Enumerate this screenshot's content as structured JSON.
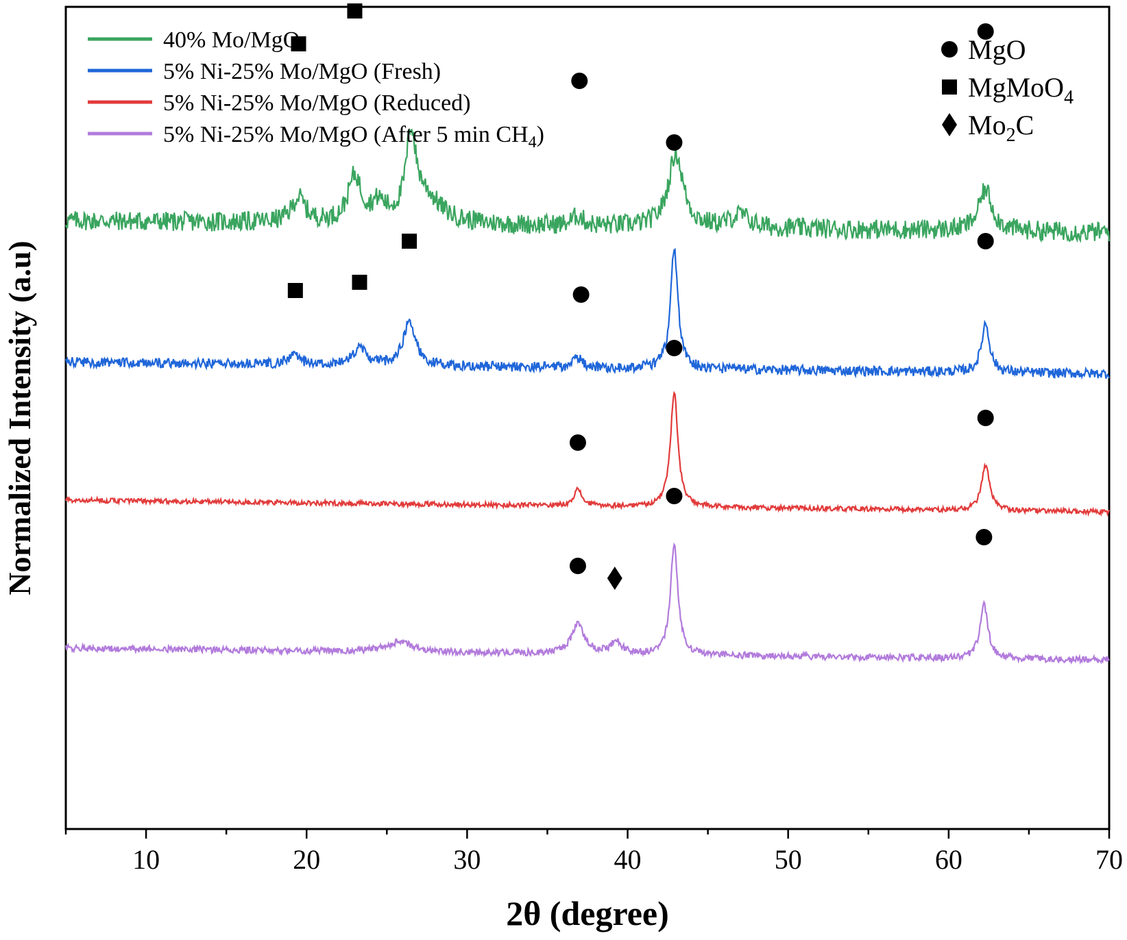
{
  "chart_data": {
    "type": "line",
    "xlabel": "2θ (degree)",
    "ylabel": "Normalized Intensity (a.u)",
    "xlim": [
      5,
      70
    ],
    "x_ticks": [
      10,
      20,
      30,
      40,
      50,
      60,
      70
    ],
    "y_ticks_shown": false,
    "grid": false,
    "legend_placement": "top-left",
    "series": [
      {
        "name": "40% Mo/MgO",
        "color": "#3aa55f",
        "baseline": 0.74,
        "noise": 0.012,
        "peaks": [
          [
            19.5,
            0.03,
            0.5
          ],
          [
            23.0,
            0.055,
            0.5
          ],
          [
            24.5,
            0.02,
            0.5
          ],
          [
            26.5,
            0.095,
            0.35
          ],
          [
            27.3,
            0.035,
            1.2
          ],
          [
            36.9,
            0.012,
            0.4
          ],
          [
            43.0,
            0.09,
            0.55
          ],
          [
            47.0,
            0.015,
            0.7
          ],
          [
            62.3,
            0.05,
            0.5
          ]
        ]
      },
      {
        "name": "5% Ni-25% Mo/MgO (Fresh)",
        "color": "#1f66d9",
        "baseline": 0.568,
        "noise": 0.006,
        "peaks": [
          [
            19.2,
            0.012,
            0.4
          ],
          [
            23.3,
            0.02,
            0.5
          ],
          [
            26.4,
            0.055,
            0.45
          ],
          [
            36.9,
            0.012,
            0.35
          ],
          [
            42.9,
            0.145,
            0.28
          ],
          [
            62.3,
            0.06,
            0.3
          ]
        ]
      },
      {
        "name": "5% Ni-25% Mo/MgO (Reduced)",
        "color": "#e23b3b",
        "baseline": 0.4,
        "noise": 0.003,
        "peaks": [
          [
            36.9,
            0.02,
            0.3
          ],
          [
            42.9,
            0.14,
            0.28
          ],
          [
            62.3,
            0.055,
            0.3
          ]
        ]
      },
      {
        "name": "5% Ni-25% Mo/MgO (After 5 min CH",
        "name_subscript": "4",
        "name_suffix": ")",
        "color": "#b27bdc",
        "baseline": 0.22,
        "noise": 0.004,
        "peaks": [
          [
            25.8,
            0.012,
            1.0
          ],
          [
            36.9,
            0.035,
            0.5
          ],
          [
            39.3,
            0.015,
            0.4
          ],
          [
            42.9,
            0.135,
            0.28
          ],
          [
            62.2,
            0.065,
            0.3
          ]
        ]
      }
    ],
    "phase_legend": [
      {
        "symbol": "circle",
        "label": "MgO",
        "sub": "",
        "tail": ""
      },
      {
        "symbol": "square",
        "label": "MgMoO",
        "sub": "4",
        "tail": ""
      },
      {
        "symbol": "diamond",
        "label": "Mo",
        "sub": "2",
        "tail": "C"
      }
    ],
    "markers": [
      {
        "x": 19.5,
        "y": 0.955,
        "symbol": "square",
        "series": "40% Mo/MgO"
      },
      {
        "x": 23.0,
        "y": 0.995,
        "symbol": "square",
        "series": "40% Mo/MgO"
      },
      {
        "x": 26.5,
        "y": 1.11,
        "symbol": "square",
        "series": "40% Mo/MgO"
      },
      {
        "x": 37.0,
        "y": 0.91,
        "symbol": "circle",
        "series": "40% Mo/MgO"
      },
      {
        "x": 43.0,
        "y": 1.03,
        "symbol": "circle",
        "series": "40% Mo/MgO"
      },
      {
        "x": 62.3,
        "y": 0.97,
        "symbol": "circle",
        "series": "40% Mo/MgO"
      },
      {
        "x": 19.3,
        "y": 0.655,
        "symbol": "square",
        "series": "5% Ni-25% Mo/MgO (Fresh)"
      },
      {
        "x": 23.3,
        "y": 0.665,
        "symbol": "square",
        "series": "5% Ni-25% Mo/MgO (Fresh)"
      },
      {
        "x": 26.4,
        "y": 0.715,
        "symbol": "square",
        "series": "5% Ni-25% Mo/MgO (Fresh)"
      },
      {
        "x": 37.1,
        "y": 0.65,
        "symbol": "circle",
        "series": "5% Ni-25% Mo/MgO (Fresh)"
      },
      {
        "x": 42.9,
        "y": 0.835,
        "symbol": "circle",
        "series": "5% Ni-25% Mo/MgO (Fresh)"
      },
      {
        "x": 62.3,
        "y": 0.715,
        "symbol": "circle",
        "series": "5% Ni-25% Mo/MgO (Fresh)"
      },
      {
        "x": 36.9,
        "y": 0.47,
        "symbol": "circle",
        "series": "5% Ni-25% Mo/MgO (Reduced)"
      },
      {
        "x": 42.9,
        "y": 0.585,
        "symbol": "circle",
        "series": "5% Ni-25% Mo/MgO (Reduced)"
      },
      {
        "x": 62.3,
        "y": 0.5,
        "symbol": "circle",
        "series": "5% Ni-25% Mo/MgO (Reduced)"
      },
      {
        "x": 36.9,
        "y": 0.32,
        "symbol": "circle",
        "series": "5% Ni-25% Mo/MgO (After 5 min CH4)"
      },
      {
        "x": 39.2,
        "y": 0.305,
        "symbol": "diamond",
        "series": "5% Ni-25% Mo/MgO (After 5 min CH4)"
      },
      {
        "x": 42.9,
        "y": 0.405,
        "symbol": "circle",
        "series": "5% Ni-25% Mo/MgO (After 5 min CH4)"
      },
      {
        "x": 62.2,
        "y": 0.355,
        "symbol": "circle",
        "series": "5% Ni-25% Mo/MgO (After 5 min CH4)"
      }
    ]
  }
}
